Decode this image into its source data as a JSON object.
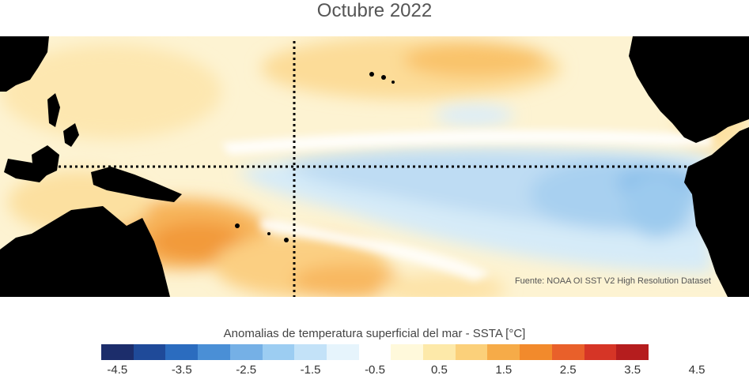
{
  "title": "Octubre 2022",
  "credit": "Fuente: NOAA OI SST V2 High Resolution Dataset",
  "colorbar": {
    "title": "Anomalias de temperatura superficial del mar - SSTA  [°C]",
    "tick_labels": [
      "-4.5",
      "-3.5",
      "-2.5",
      "-1.5",
      "-0.5",
      "0.5",
      "1.5",
      "2.5",
      "3.5",
      "4.5"
    ],
    "colors": [
      "#1c2d6b",
      "#1f4a99",
      "#2b6cbf",
      "#4a8fd6",
      "#75b0e6",
      "#9ccdf2",
      "#c3e2f8",
      "#e6f4fc",
      "#ffffff",
      "#fff9db",
      "#fde9a9",
      "#fbd07a",
      "#f6ab48",
      "#f28a2c",
      "#e9602a",
      "#d63526",
      "#b51d1e"
    ]
  },
  "map": {
    "land_color": "#000000",
    "ocean_neutral": "#fdf7dc"
  }
}
